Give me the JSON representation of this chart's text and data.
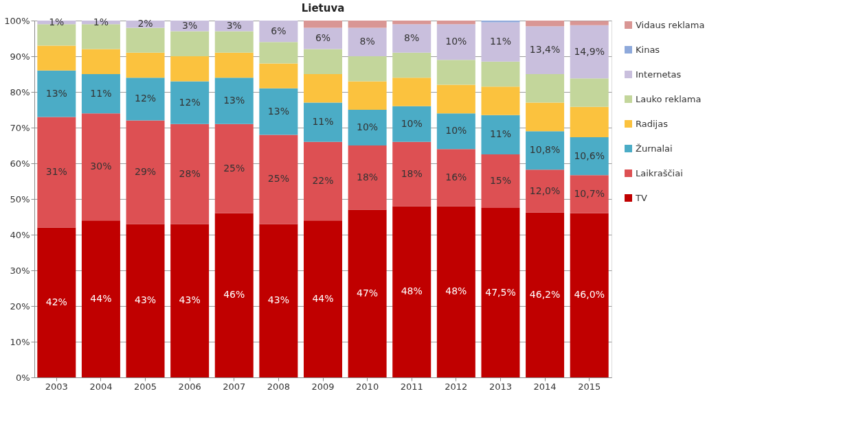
{
  "chart_data": {
    "type": "bar",
    "title": "Lietuva",
    "stacked": true,
    "categories": [
      "2003",
      "2004",
      "2005",
      "2006",
      "2007",
      "2008",
      "2009",
      "2010",
      "2011",
      "2012",
      "2013",
      "2014",
      "2015"
    ],
    "series": [
      {
        "name": "TV",
        "color": "#c00000",
        "values": [
          42,
          44,
          43,
          43,
          46,
          43,
          44,
          47,
          48,
          48,
          47.5,
          46.2,
          46.0
        ],
        "value_labels": [
          "42%",
          "44%",
          "43%",
          "43%",
          "46%",
          "43%",
          "44%",
          "47%",
          "48%",
          "48%",
          "47,5%",
          "46,2%",
          "46,0%"
        ]
      },
      {
        "name": "Laikraščiai",
        "color": "#dd5053",
        "values": [
          31,
          30,
          29,
          28,
          25,
          25,
          22,
          18,
          18,
          16,
          15,
          12.0,
          10.7
        ],
        "value_labels": [
          "31%",
          "30%",
          "29%",
          "28%",
          "25%",
          "25%",
          "22%",
          "18%",
          "18%",
          "16%",
          "15%",
          "12,0%",
          "10,7%"
        ]
      },
      {
        "name": "Žurnalai",
        "color": "#4bacc6",
        "values": [
          13,
          11,
          12,
          12,
          13,
          13,
          11,
          10,
          10,
          10,
          11,
          10.8,
          10.6
        ],
        "value_labels": [
          "13%",
          "11%",
          "12%",
          "12%",
          "13%",
          "13%",
          "11%",
          "10%",
          "10%",
          "10%",
          "11%",
          "10,8%",
          "10,6%"
        ]
      },
      {
        "name": "Radijas",
        "color": "#fbc23e",
        "values": [
          7,
          7,
          7,
          7,
          7,
          7,
          8,
          8,
          8,
          8,
          8,
          8,
          8.5
        ]
      },
      {
        "name": "Lauko reklama",
        "color": "#c3d69b",
        "values": [
          6,
          7,
          7,
          7,
          6,
          6,
          7,
          7,
          7,
          7,
          7,
          8,
          8
        ]
      },
      {
        "name": "Internetas",
        "color": "#c9bfdd",
        "values": [
          1,
          1,
          2,
          3,
          3,
          6,
          6,
          8,
          8,
          10,
          11,
          13.4,
          14.9
        ],
        "value_labels": [
          "1%",
          "1%",
          "2%",
          "3%",
          "3%",
          "6%",
          "6%",
          "8%",
          "8%",
          "10%",
          "11%",
          "13,4%",
          "14,9%"
        ]
      },
      {
        "name": "Kinas",
        "color": "#8ea9db",
        "values": [
          0,
          0,
          0,
          0,
          0,
          0,
          0,
          0,
          0,
          0,
          0.5,
          0,
          0
        ]
      },
      {
        "name": "Vidaus reklama",
        "color": "#d99694",
        "values": [
          0,
          0,
          0,
          0,
          0,
          0,
          2,
          2,
          1,
          1,
          0,
          1.6,
          1.2
        ]
      }
    ],
    "ylim": [
      0,
      100
    ],
    "yticks": [
      {
        "value": 0,
        "label": "0%"
      },
      {
        "value": 10,
        "label": "10%"
      },
      {
        "value": 20,
        "label": "20%"
      },
      {
        "value": 30,
        "label": "30%"
      },
      {
        "value": 40,
        "label": "40%"
      },
      {
        "value": 50,
        "label": "50%"
      },
      {
        "value": 60,
        "label": "60%"
      },
      {
        "value": 70,
        "label": "70%"
      },
      {
        "value": 80,
        "label": "80%"
      },
      {
        "value": 90,
        "label": "90%"
      },
      {
        "value": 100,
        "label": "100%"
      }
    ],
    "grid": "y",
    "legend": "right"
  }
}
